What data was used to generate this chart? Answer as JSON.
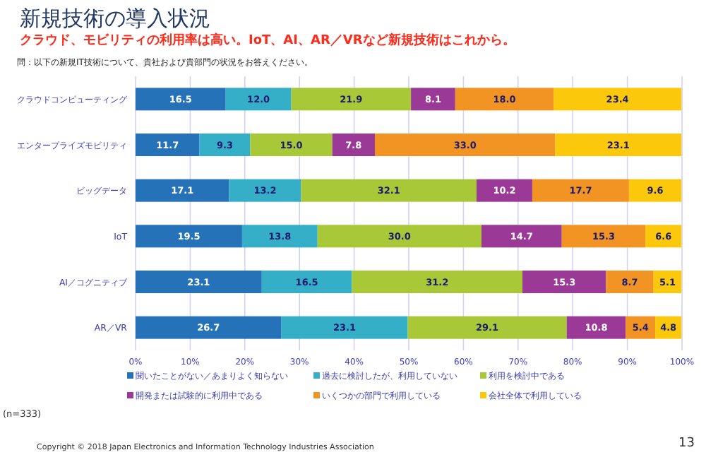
{
  "chart_data": {
    "type": "bar",
    "orientation": "horizontal",
    "stacked": true,
    "title": "新規技術の導入状況",
    "subtitle": "クラウド、モビリティの利用率は高い。IoT、AI、AR／VRなど新規技術はこれから。",
    "categories": [
      "クラウドコンピューティング",
      "エンタープライズモビリティ",
      "ビッグデータ",
      "IoT",
      "AI／コグニティブ",
      "AR／VR"
    ],
    "series": [
      {
        "name": "聞いたことがない／あまりよく知らない",
        "color": "#2672b8",
        "values": [
          16.5,
          11.7,
          17.1,
          19.5,
          23.1,
          26.7
        ],
        "value_labels": [
          "16.5",
          "11.7",
          "17.1",
          "19.5",
          "23.1",
          "26.7"
        ]
      },
      {
        "name": "過去に検討したが、利用していない",
        "color": "#35aec8",
        "values": [
          12.0,
          9.3,
          13.2,
          13.8,
          16.5,
          23.1
        ],
        "value_labels": [
          "12.0",
          "9.3",
          "13.2",
          "13.8",
          "16.5",
          "23.1"
        ]
      },
      {
        "name": "利用を検討中である",
        "color": "#a8c838",
        "values": [
          21.9,
          15.0,
          32.1,
          30.0,
          31.2,
          29.1
        ],
        "value_labels": [
          "21.9",
          "15.0",
          "32.1",
          "30.0",
          "31.2",
          "29.1"
        ]
      },
      {
        "name": "開発または試験的に利用中である",
        "color": "#9a3a96",
        "values": [
          8.1,
          7.8,
          10.2,
          14.7,
          15.3,
          10.8
        ],
        "value_labels": [
          "8.1",
          "7.8",
          "10.2",
          "14.7",
          "15.3",
          "10.8"
        ]
      },
      {
        "name": "いくつかの部門で利用している",
        "color": "#f29423",
        "values": [
          18.0,
          33.0,
          17.7,
          15.3,
          8.7,
          5.4
        ],
        "value_labels": [
          "18.0",
          "33.0",
          "17.7",
          "15.3",
          "8.7",
          "5.4"
        ]
      },
      {
        "name": "会社全体で利用している",
        "color": "#fcc80c",
        "values": [
          23.4,
          23.1,
          9.6,
          6.6,
          5.1,
          4.8
        ],
        "value_labels": [
          "23.4",
          "23.1",
          "9.6",
          "6.6",
          "5.1",
          "4.8"
        ]
      }
    ],
    "xlim": [
      0,
      100
    ],
    "xticks": [
      {
        "value": 0,
        "label": "0%"
      },
      {
        "value": 10,
        "label": "10%"
      },
      {
        "value": 20,
        "label": "20%"
      },
      {
        "value": 30,
        "label": "30%"
      },
      {
        "value": 40,
        "label": "40%"
      },
      {
        "value": 50,
        "label": "50%"
      },
      {
        "value": 60,
        "label": "60%"
      },
      {
        "value": 70,
        "label": "70%"
      },
      {
        "value": 80,
        "label": "80%"
      },
      {
        "value": 90,
        "label": "90%"
      },
      {
        "value": 100,
        "label": "100%"
      }
    ],
    "grid": "x",
    "legend": "bottom",
    "annotations": [
      "問：以下の新規IT技術について、貴社および貴部門の状況をお答えください。",
      "(n=333)",
      "Copyright © 2018 Japan Electronics and Information Technology Industries Association",
      "13"
    ]
  }
}
